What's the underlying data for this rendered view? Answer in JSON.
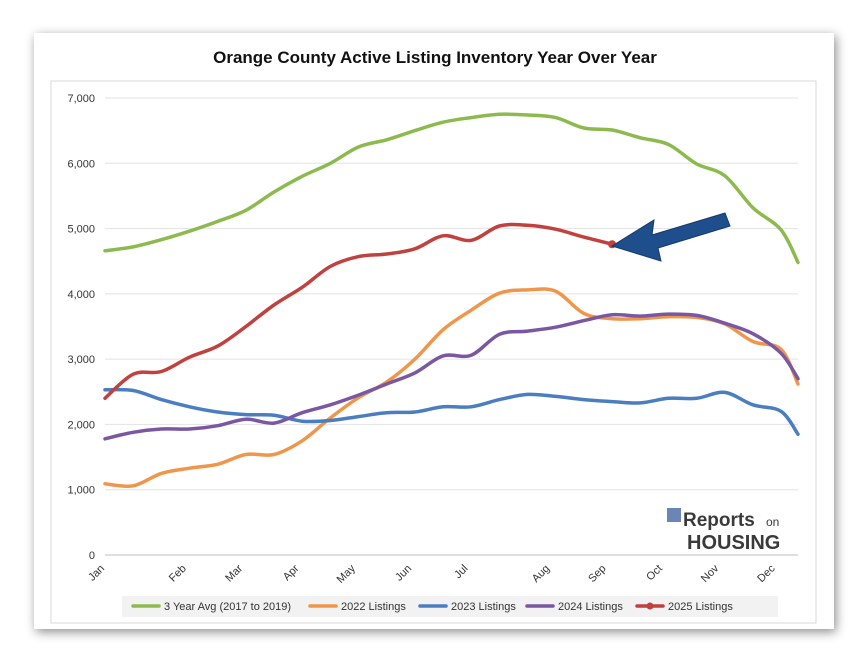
{
  "chart_data": {
    "type": "line",
    "title": "Orange County Active Listing Inventory Year Over Year",
    "xlabel": "",
    "ylabel": "",
    "ylim": [
      0,
      7000
    ],
    "y_ticks": [
      0,
      1000,
      2000,
      3000,
      4000,
      5000,
      6000,
      7000
    ],
    "y_tick_labels": [
      "0",
      "1,000",
      "2,000",
      "3,000",
      "4,000",
      "5,000",
      "6,000",
      "7,000"
    ],
    "x_range": [
      0,
      12
    ],
    "months": [
      {
        "label": "Jan",
        "x": 0
      },
      {
        "label": "Feb",
        "x": 1.45
      },
      {
        "label": "Mar",
        "x": 2.45
      },
      {
        "label": "Apr",
        "x": 3.45
      },
      {
        "label": "May",
        "x": 4.45
      },
      {
        "label": "Jun",
        "x": 5.45
      },
      {
        "label": "Jul",
        "x": 6.45
      },
      {
        "label": "Aug",
        "x": 7.9
      },
      {
        "label": "Sep",
        "x": 8.9
      },
      {
        "label": "Oct",
        "x": 9.9
      },
      {
        "label": "Nov",
        "x": 10.9
      },
      {
        "label": "Dec",
        "x": 11.9
      }
    ],
    "grid": "horizontal",
    "legend_position": "bottom",
    "series": [
      {
        "name": "3 Year Avg (2017 to 2019)",
        "color": "#8cba4e",
        "points": [
          [
            0,
            4660
          ],
          [
            0.5,
            4720
          ],
          [
            1,
            4830
          ],
          [
            1.5,
            4960
          ],
          [
            2,
            5110
          ],
          [
            2.5,
            5280
          ],
          [
            3,
            5560
          ],
          [
            3.5,
            5800
          ],
          [
            4,
            6000
          ],
          [
            4.5,
            6250
          ],
          [
            5,
            6360
          ],
          [
            5.5,
            6500
          ],
          [
            6,
            6630
          ],
          [
            6.5,
            6700
          ],
          [
            7,
            6750
          ],
          [
            7.5,
            6740
          ],
          [
            8,
            6700
          ],
          [
            8.5,
            6540
          ],
          [
            9,
            6510
          ],
          [
            9.5,
            6390
          ],
          [
            10,
            6290
          ],
          [
            10.5,
            5990
          ],
          [
            11,
            5810
          ],
          [
            11.5,
            5320
          ],
          [
            12,
            4980
          ],
          [
            12.3,
            4480
          ]
        ]
      },
      {
        "name": "2022 Listings",
        "color": "#f0964a",
        "points": [
          [
            0,
            1090
          ],
          [
            0.5,
            1060
          ],
          [
            1,
            1250
          ],
          [
            1.5,
            1330
          ],
          [
            2,
            1390
          ],
          [
            2.5,
            1540
          ],
          [
            3,
            1540
          ],
          [
            3.5,
            1750
          ],
          [
            4,
            2100
          ],
          [
            4.5,
            2410
          ],
          [
            5,
            2650
          ],
          [
            5.5,
            3000
          ],
          [
            6,
            3450
          ],
          [
            6.5,
            3750
          ],
          [
            7,
            4010
          ],
          [
            7.5,
            4060
          ],
          [
            8,
            4040
          ],
          [
            8.5,
            3700
          ],
          [
            9,
            3620
          ],
          [
            9.5,
            3620
          ],
          [
            10,
            3650
          ],
          [
            10.5,
            3640
          ],
          [
            11,
            3540
          ],
          [
            11.5,
            3270
          ],
          [
            12,
            3150
          ],
          [
            12.3,
            2620
          ]
        ]
      },
      {
        "name": "2023 Listings",
        "color": "#4a7ec0",
        "points": [
          [
            0,
            2530
          ],
          [
            0.5,
            2520
          ],
          [
            1,
            2380
          ],
          [
            1.5,
            2270
          ],
          [
            2,
            2190
          ],
          [
            2.5,
            2150
          ],
          [
            3,
            2140
          ],
          [
            3.5,
            2050
          ],
          [
            4,
            2060
          ],
          [
            4.5,
            2120
          ],
          [
            5,
            2180
          ],
          [
            5.5,
            2190
          ],
          [
            6,
            2270
          ],
          [
            6.5,
            2270
          ],
          [
            7,
            2380
          ],
          [
            7.5,
            2460
          ],
          [
            8,
            2430
          ],
          [
            8.5,
            2380
          ],
          [
            9,
            2350
          ],
          [
            9.5,
            2330
          ],
          [
            10,
            2400
          ],
          [
            10.5,
            2400
          ],
          [
            11,
            2490
          ],
          [
            11.5,
            2300
          ],
          [
            12,
            2200
          ],
          [
            12.3,
            1850
          ]
        ]
      },
      {
        "name": "2024 Listings",
        "color": "#7a57a2",
        "points": [
          [
            0,
            1780
          ],
          [
            0.5,
            1880
          ],
          [
            1,
            1930
          ],
          [
            1.5,
            1930
          ],
          [
            2,
            1980
          ],
          [
            2.5,
            2080
          ],
          [
            3,
            2020
          ],
          [
            3.5,
            2180
          ],
          [
            4,
            2300
          ],
          [
            4.5,
            2450
          ],
          [
            5,
            2620
          ],
          [
            5.5,
            2790
          ],
          [
            6,
            3050
          ],
          [
            6.5,
            3060
          ],
          [
            7,
            3380
          ],
          [
            7.5,
            3430
          ],
          [
            8,
            3490
          ],
          [
            8.5,
            3590
          ],
          [
            9,
            3680
          ],
          [
            9.5,
            3660
          ],
          [
            10,
            3690
          ],
          [
            10.5,
            3670
          ],
          [
            11,
            3550
          ],
          [
            11.5,
            3390
          ],
          [
            12,
            3090
          ],
          [
            12.3,
            2700
          ]
        ]
      },
      {
        "name": "2025 Listings",
        "color": "#c0413e",
        "marker_last": true,
        "points": [
          [
            0,
            2400
          ],
          [
            0.5,
            2770
          ],
          [
            1,
            2810
          ],
          [
            1.5,
            3030
          ],
          [
            2,
            3200
          ],
          [
            2.5,
            3500
          ],
          [
            3,
            3830
          ],
          [
            3.5,
            4100
          ],
          [
            4,
            4420
          ],
          [
            4.5,
            4570
          ],
          [
            5,
            4610
          ],
          [
            5.5,
            4690
          ],
          [
            6,
            4890
          ],
          [
            6.5,
            4820
          ],
          [
            7,
            5040
          ],
          [
            7.5,
            5050
          ],
          [
            8,
            4990
          ],
          [
            8.5,
            4870
          ],
          [
            9,
            4760
          ]
        ]
      }
    ],
    "annotation": {
      "type": "arrow",
      "color": "#1f4e8c",
      "points_to": "2025 Listings"
    }
  },
  "logo": {
    "reports": "Reports",
    "on": "on",
    "housing": "HOUSING"
  }
}
